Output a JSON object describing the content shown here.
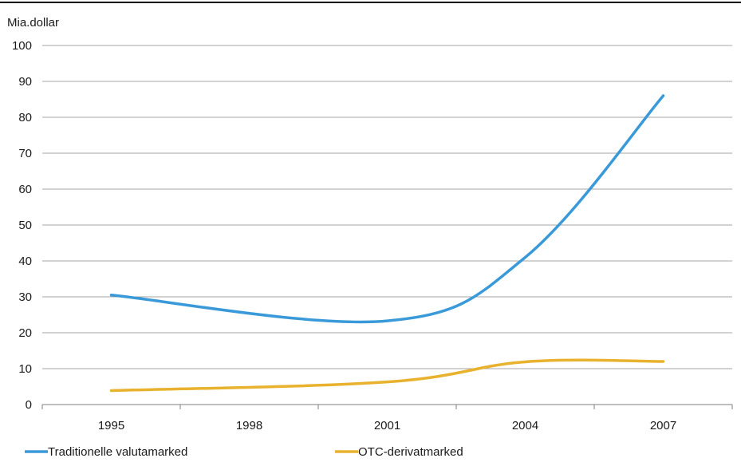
{
  "chart_data": {
    "type": "line",
    "title": "",
    "unit_label": "Mia.dollar",
    "xlabel": "",
    "ylabel": "",
    "categories": [
      "1995",
      "1998",
      "2001",
      "2004",
      "2007"
    ],
    "y_ticks": [
      "0",
      "10",
      "20",
      "30",
      "40",
      "50",
      "60",
      "70",
      "80",
      "90",
      "100"
    ],
    "ylim": [
      0,
      100
    ],
    "grid": "horizontal",
    "legend_position": "bottom-left",
    "series": [
      {
        "name": "Traditionelle valutamarked",
        "color": "#3a9ad9",
        "x": [
          "1995",
          "2001",
          "2004",
          "2007"
        ],
        "values": [
          30.5,
          23.3,
          41,
          86
        ]
      },
      {
        "name": "OTC-derivatmarked",
        "color": "#e8b22e",
        "x": [
          "1995",
          "2001",
          "2004",
          "2007"
        ],
        "values": [
          3.9,
          6.3,
          11.9,
          12
        ]
      }
    ]
  }
}
